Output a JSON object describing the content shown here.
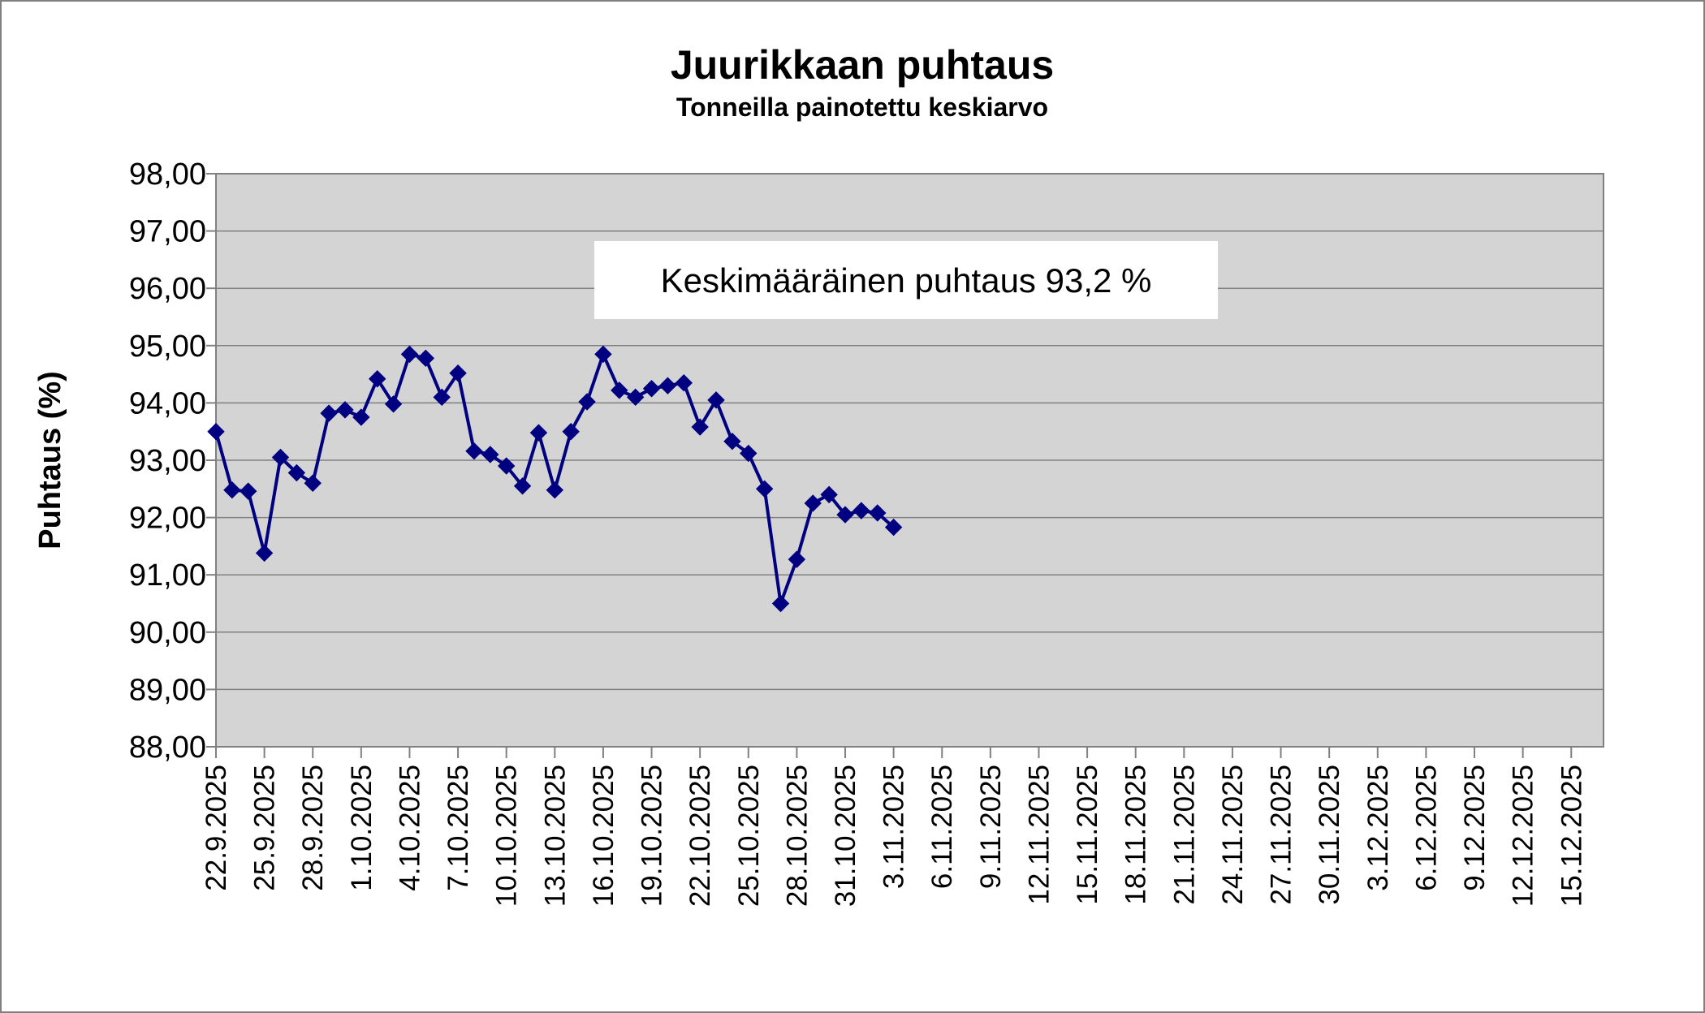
{
  "chart_data": {
    "type": "line",
    "title": "Juurikkaan puhtaus",
    "subtitle": "Tonneilla painotettu keskiarvo",
    "ylabel": "Puhtaus (%)",
    "xlabel": "",
    "ylim": [
      88,
      98
    ],
    "xlim": [
      "22.9.2025",
      "17.12.2025"
    ],
    "y_tick_labels": [
      "88,00",
      "89,00",
      "90,00",
      "91,00",
      "92,00",
      "93,00",
      "94,00",
      "95,00",
      "96,00",
      "97,00",
      "98,00"
    ],
    "x_tick_labels": [
      "22.9.2025",
      "25.9.2025",
      "28.9.2025",
      "1.10.2025",
      "4.10.2025",
      "7.10.2025",
      "10.10.2025",
      "13.10.2025",
      "16.10.2025",
      "19.10.2025",
      "22.10.2025",
      "25.10.2025",
      "28.10.2025",
      "31.10.2025",
      "3.11.2025",
      "6.11.2025",
      "9.11.2025",
      "12.11.2025",
      "15.11.2025",
      "18.11.2025",
      "21.11.2025",
      "24.11.2025",
      "27.11.2025",
      "30.11.2025",
      "3.12.2025",
      "6.12.2025",
      "9.12.2025",
      "12.12.2025",
      "15.12.2025"
    ],
    "grid": true,
    "annotation": "Keskimääräinen puhtaus 93,2 %",
    "colors": {
      "plot_background": "#d4d4d4",
      "series": "#000080"
    },
    "series": [
      {
        "x": [
          "22.9.2025",
          "23.9.2025",
          "24.9.2025",
          "25.9.2025",
          "26.9.2025",
          "27.9.2025",
          "28.9.2025",
          "29.9.2025",
          "30.9.2025",
          "1.10.2025",
          "2.10.2025",
          "3.10.2025",
          "4.10.2025",
          "5.10.2025",
          "6.10.2025",
          "7.10.2025",
          "8.10.2025",
          "9.10.2025",
          "10.10.2025",
          "11.10.2025",
          "12.10.2025",
          "13.10.2025",
          "14.10.2025",
          "15.10.2025",
          "16.10.2025",
          "17.10.2025",
          "18.10.2025",
          "19.10.2025",
          "20.10.2025",
          "21.10.2025",
          "22.10.2025",
          "23.10.2025",
          "24.10.2025",
          "25.10.2025",
          "26.10.2025",
          "27.10.2025",
          "28.10.2025",
          "29.10.2025",
          "30.10.2025",
          "31.10.2025",
          "1.11.2025",
          "2.11.2025",
          "3.11.2025"
        ],
        "values": [
          93.5,
          92.48,
          92.46,
          91.38,
          93.05,
          92.78,
          92.6,
          93.82,
          93.88,
          93.75,
          94.42,
          93.98,
          94.85,
          94.78,
          94.1,
          94.52,
          93.16,
          93.1,
          92.9,
          92.55,
          93.48,
          92.48,
          93.5,
          94.02,
          94.85,
          94.22,
          94.1,
          94.25,
          94.3,
          94.35,
          93.58,
          94.05,
          93.33,
          93.12,
          92.5,
          90.5,
          91.27,
          92.25,
          92.4,
          92.05,
          92.12,
          92.08,
          91.83
        ]
      }
    ]
  }
}
